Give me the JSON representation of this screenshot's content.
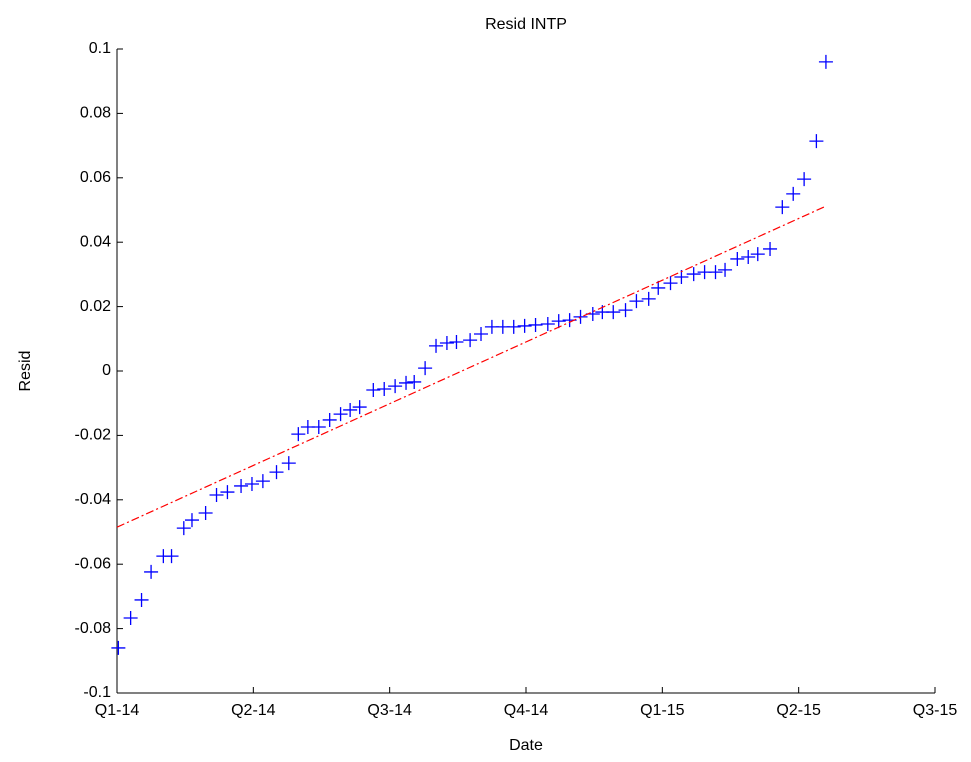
{
  "chart_data": {
    "type": "scatter",
    "title": "Resid INTP",
    "xlabel": "Date",
    "ylabel": "Resid",
    "xlim": [
      0,
      6
    ],
    "xticks": [
      {
        "value": 0,
        "label": "Q1-14"
      },
      {
        "value": 1,
        "label": "Q2-14"
      },
      {
        "value": 2,
        "label": "Q3-14"
      },
      {
        "value": 3,
        "label": "Q4-14"
      },
      {
        "value": 4,
        "label": "Q1-15"
      },
      {
        "value": 5,
        "label": "Q2-15"
      },
      {
        "value": 6,
        "label": "Q3-15"
      }
    ],
    "ylim": [
      -0.1,
      0.1
    ],
    "yticks": [
      -0.1,
      -0.08,
      -0.06,
      -0.04,
      -0.02,
      0,
      0.02,
      0.04,
      0.06,
      0.08,
      0.1
    ],
    "grid": false,
    "series": [
      {
        "type": "scatter",
        "marker": "+",
        "color": "#0000ff",
        "x": [
          0.01,
          0.1,
          0.18,
          0.25,
          0.34,
          0.4,
          0.49,
          0.55,
          0.65,
          0.73,
          0.81,
          0.91,
          0.99,
          1.07,
          1.17,
          1.26,
          1.33,
          1.4,
          1.48,
          1.56,
          1.64,
          1.71,
          1.78,
          1.88,
          1.96,
          2.04,
          2.12,
          2.18,
          2.26,
          2.34,
          2.42,
          2.49,
          2.59,
          2.67,
          2.75,
          2.83,
          2.91,
          2.99,
          3.07,
          3.16,
          3.24,
          3.32,
          3.4,
          3.49,
          3.56,
          3.64,
          3.73,
          3.81,
          3.9,
          3.97,
          4.06,
          4.14,
          4.23,
          4.31,
          4.39,
          4.46,
          4.55,
          4.63,
          4.7,
          4.79,
          4.88,
          4.96,
          5.04,
          5.13,
          5.2
        ],
        "values": [
          -0.086,
          -0.0767,
          -0.0711,
          -0.0624,
          -0.0575,
          -0.0575,
          -0.0488,
          -0.0463,
          -0.0441,
          -0.0385,
          -0.0376,
          -0.0357,
          -0.0351,
          -0.0342,
          -0.0314,
          -0.0286,
          -0.0196,
          -0.0174,
          -0.0174,
          -0.0152,
          -0.0134,
          -0.0121,
          -0.0112,
          -0.0059,
          -0.0056,
          -0.0047,
          -0.0037,
          -0.0034,
          0.0009,
          0.0078,
          0.0087,
          0.009,
          0.0096,
          0.0115,
          0.0137,
          0.0137,
          0.0137,
          0.014,
          0.0143,
          0.0146,
          0.0155,
          0.0158,
          0.0168,
          0.0177,
          0.0183,
          0.0183,
          0.0189,
          0.0217,
          0.0224,
          0.0258,
          0.0273,
          0.0292,
          0.0301,
          0.0307,
          0.0307,
          0.0314,
          0.0348,
          0.0354,
          0.0363,
          0.0379,
          0.0509,
          0.055,
          0.0596,
          0.0714,
          0.096
        ]
      },
      {
        "type": "line",
        "linestyle": "-.",
        "color": "#ff0000",
        "x": [
          0,
          5.2
        ],
        "values": [
          -0.0485,
          0.0512
        ]
      }
    ]
  }
}
